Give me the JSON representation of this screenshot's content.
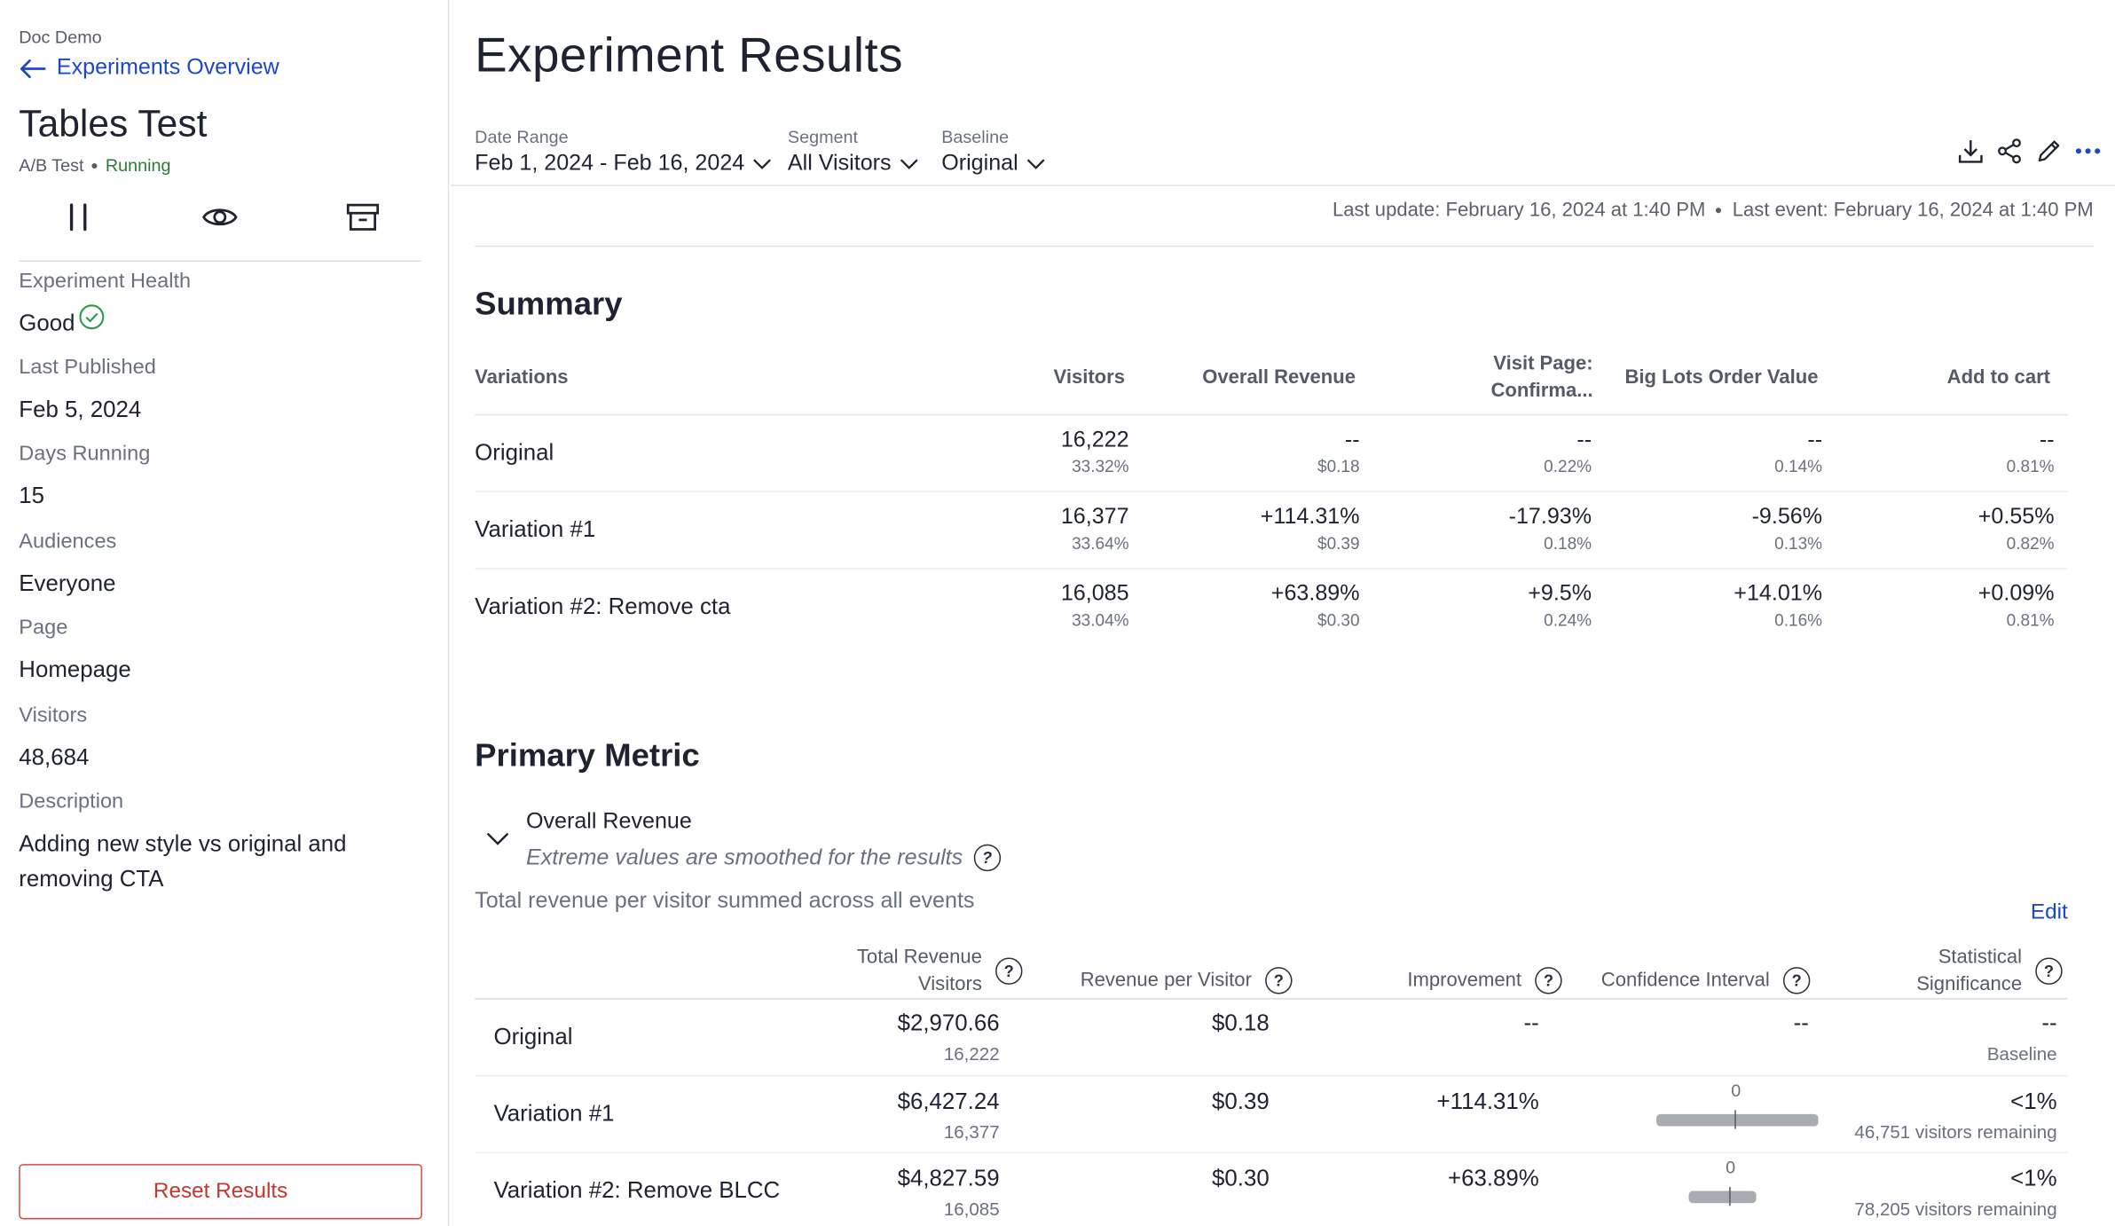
{
  "sidebar": {
    "org": "Doc Demo",
    "back_label": "Experiments Overview",
    "experiment_name": "Tables Test",
    "experiment_type": "A/B Test",
    "status": "Running",
    "fields": [
      {
        "label": "Experiment Health",
        "value": "Good"
      },
      {
        "label": "Last Published",
        "value": "Feb 5, 2024"
      },
      {
        "label": "Days Running",
        "value": "15"
      },
      {
        "label": "Audiences",
        "value": "Everyone"
      },
      {
        "label": "Page",
        "value": "Homepage"
      },
      {
        "label": "Visitors",
        "value": "48,684"
      },
      {
        "label": "Description",
        "value": "Adding new style vs original and removing CTA"
      }
    ],
    "reset_label": "Reset Results",
    "action_icons": [
      "pause-icon",
      "eye-icon",
      "archive-icon"
    ]
  },
  "header": {
    "title": "Experiment Results",
    "filters": [
      {
        "label": "Date Range",
        "value": "Feb 1, 2024 - Feb 16, 2024"
      },
      {
        "label": "Segment",
        "value": "All Visitors"
      },
      {
        "label": "Baseline",
        "value": "Original"
      }
    ],
    "toolbar_icons": [
      "download-icon",
      "share-icon",
      "edit-pencil-icon",
      "more-icon"
    ],
    "last_update": "Last update: February 16, 2024 at 1:40 PM",
    "last_event": "Last event: February 16, 2024 at 1:40 PM"
  },
  "summary": {
    "title": "Summary",
    "columns": [
      "Variations",
      "Visitors",
      "Overall Revenue",
      "Visit Page: Confirma...",
      "Big Lots Order Value",
      "Add to cart"
    ],
    "rows": [
      {
        "name": "Original",
        "cells": [
          [
            "16,222",
            "33.32%"
          ],
          [
            "--",
            "$0.18"
          ],
          [
            "--",
            "0.22%"
          ],
          [
            "--",
            "0.14%"
          ],
          [
            "--",
            "0.81%"
          ]
        ]
      },
      {
        "name": "Variation #1",
        "cells": [
          [
            "16,377",
            "33.64%"
          ],
          [
            "+114.31%",
            "$0.39"
          ],
          [
            "-17.93%",
            "0.18%"
          ],
          [
            "-9.56%",
            "0.13%"
          ],
          [
            "+0.55%",
            "0.82%"
          ]
        ]
      },
      {
        "name": "Variation #2: Remove cta",
        "cells": [
          [
            "16,085",
            "33.04%"
          ],
          [
            "+63.89%",
            "$0.30"
          ],
          [
            "+9.5%",
            "0.24%"
          ],
          [
            "+14.01%",
            "0.16%"
          ],
          [
            "+0.09%",
            "0.81%"
          ]
        ]
      }
    ]
  },
  "primary_metric": {
    "title": "Primary Metric",
    "metric_name": "Overall Revenue",
    "note": "Extreme values are smoothed for the results",
    "description": "Total revenue per visitor summed across all events",
    "edit_label": "Edit",
    "columns": [
      "Total Revenue Visitors",
      "Revenue per Visitor",
      "Improvement",
      "Confidence Interval",
      "Statistical Significance"
    ],
    "col_lines": [
      [
        "Total Revenue",
        "Visitors"
      ],
      [
        "Revenue per Visitor"
      ],
      [
        "Improvement"
      ],
      [
        "Confidence Interval"
      ],
      [
        "Statistical",
        "Significance"
      ]
    ],
    "rows": [
      {
        "name": "Original",
        "total_revenue": "$2,970.66",
        "visitors": "16,222",
        "rpv": "$0.18",
        "improvement": "--",
        "ci": "--",
        "significance": "--",
        "sig_sub": "Baseline"
      },
      {
        "name": "Variation #1",
        "total_revenue": "$6,427.24",
        "visitors": "16,377",
        "rpv": "$0.39",
        "improvement": "+114.31%",
        "ci_zero": "0",
        "significance": "<1%",
        "sig_sub": "46,751 visitors remaining"
      },
      {
        "name": "Variation #2: Remove BLCC",
        "total_revenue": "$4,827.59",
        "visitors": "16,085",
        "rpv": "$0.30",
        "improvement": "+63.89%",
        "ci_zero": "0",
        "significance": "<1%",
        "sig_sub": "78,205 visitors remaining"
      }
    ]
  },
  "colors": {
    "accent": "#1d47c9",
    "running": "#2c7a3a",
    "health_good": "#2c9a4a",
    "danger": "#c9342f"
  }
}
